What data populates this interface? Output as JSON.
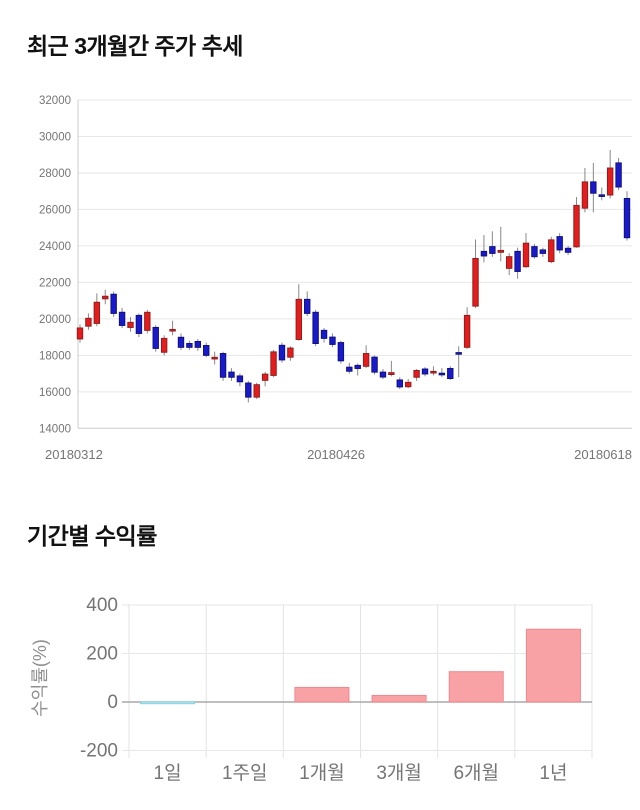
{
  "page": {
    "background": "#ffffff"
  },
  "chart_data": [
    {
      "type": "candlestick",
      "title": "최근 3개월간 주가 추세",
      "xlabel": "",
      "ylabel": "",
      "ylim": [
        14000,
        32000
      ],
      "y_ticks": [
        32000,
        30000,
        28000,
        26000,
        24000,
        22000,
        20000,
        18000,
        16000,
        14000
      ],
      "x_tick_labels": [
        "20180312",
        "20180426",
        "20180618"
      ],
      "grid": "horizontal-only",
      "colors": {
        "up_fill": "#e61c1c",
        "up_border": "#8f1f1f",
        "down_fill": "#1a1acd",
        "down_border": "#10107e",
        "wick": "#888888",
        "grid_line": "#e7e7e7",
        "axis_line": "#cccccc",
        "tick_text": "#757575"
      },
      "ohlc_note": "values in KRW, [open, high, low, close]; red = close above open, blue = close below open",
      "ohlc": [
        [
          18900,
          19700,
          18700,
          19500
        ],
        [
          19600,
          20300,
          19400,
          20030
        ],
        [
          19750,
          21400,
          19600,
          20910
        ],
        [
          21100,
          21600,
          20800,
          21240
        ],
        [
          21350,
          21500,
          20100,
          20300
        ],
        [
          20360,
          20600,
          19500,
          19640
        ],
        [
          19530,
          20100,
          19300,
          19810
        ],
        [
          20190,
          20300,
          19000,
          19200
        ],
        [
          19370,
          20500,
          19200,
          20360
        ],
        [
          19530,
          19650,
          18200,
          18380
        ],
        [
          18170,
          19100,
          18000,
          18930
        ],
        [
          19350,
          19900,
          19100,
          19420
        ],
        [
          18990,
          19200,
          18300,
          18440
        ],
        [
          18650,
          18800,
          18300,
          18440
        ],
        [
          18760,
          18900,
          18250,
          18440
        ],
        [
          18540,
          18700,
          17900,
          18000
        ],
        [
          17850,
          18200,
          17500,
          17890
        ],
        [
          18100,
          18200,
          16600,
          16800
        ],
        [
          17080,
          17300,
          16600,
          16800
        ],
        [
          16870,
          17000,
          16300,
          16550
        ],
        [
          16480,
          16600,
          15420,
          15710
        ],
        [
          15710,
          16500,
          15600,
          16390
        ],
        [
          16630,
          17100,
          16300,
          16970
        ],
        [
          16900,
          18300,
          16800,
          18190
        ],
        [
          18550,
          18700,
          17600,
          17750
        ],
        [
          17900,
          18500,
          17700,
          18400
        ],
        [
          18870,
          21900,
          18800,
          21070
        ],
        [
          21070,
          21500,
          20150,
          20300
        ],
        [
          20360,
          20500,
          18500,
          18650
        ],
        [
          19370,
          19500,
          18700,
          18930
        ],
        [
          19000,
          19200,
          18450,
          18600
        ],
        [
          18700,
          18800,
          17550,
          17700
        ],
        [
          17350,
          17600,
          17000,
          17130
        ],
        [
          17450,
          17550,
          16900,
          17280
        ],
        [
          17400,
          18550,
          17300,
          18100
        ],
        [
          17900,
          18000,
          16950,
          17080
        ],
        [
          17080,
          17250,
          16700,
          16810
        ],
        [
          16950,
          17700,
          16850,
          17050
        ],
        [
          16650,
          16800,
          16150,
          16270
        ],
        [
          16280,
          16700,
          16200,
          16520
        ],
        [
          16800,
          17250,
          16600,
          17170
        ],
        [
          17250,
          17350,
          16850,
          16980
        ],
        [
          17050,
          17400,
          16900,
          17120
        ],
        [
          17020,
          17300,
          16800,
          16990
        ],
        [
          17280,
          17400,
          16650,
          16730
        ],
        [
          18150,
          18500,
          16800,
          18100
        ],
        [
          18440,
          20640,
          18350,
          20190
        ],
        [
          20700,
          24350,
          20600,
          23310
        ],
        [
          23700,
          24600,
          23100,
          23450
        ],
        [
          23960,
          24800,
          23400,
          23590
        ],
        [
          23650,
          25050,
          23150,
          23750
        ],
        [
          22770,
          23600,
          22400,
          23410
        ],
        [
          23700,
          23900,
          22200,
          22600
        ],
        [
          22860,
          24700,
          22800,
          24150
        ],
        [
          23960,
          24100,
          23300,
          23410
        ],
        [
          23780,
          23900,
          23400,
          23590
        ],
        [
          23140,
          24500,
          23050,
          24330
        ],
        [
          24510,
          24700,
          23600,
          23780
        ],
        [
          23870,
          24000,
          23500,
          23650
        ],
        [
          23950,
          26680,
          23900,
          26220
        ],
        [
          26070,
          28270,
          25840,
          27510
        ],
        [
          27510,
          28550,
          25840,
          26890
        ],
        [
          26800,
          27200,
          26500,
          26740
        ],
        [
          26790,
          29260,
          26600,
          28270
        ],
        [
          28550,
          28820,
          27060,
          27230
        ],
        [
          26600,
          27000,
          24290,
          24450
        ]
      ]
    },
    {
      "type": "bar",
      "title": "기간별 수익률",
      "xlabel": "",
      "ylabel": "수익률(%)",
      "ylim": [
        -280,
        420
      ],
      "y_ticks": [
        400,
        200,
        0,
        -200
      ],
      "categories": [
        "1일",
        "1주일",
        "1개월",
        "3개월",
        "6개월",
        "1년"
      ],
      "values": [
        -7,
        0,
        60,
        27,
        125,
        300
      ],
      "grid": "both",
      "legend": "none",
      "colors": {
        "positive_fill": "#f9a2a6",
        "positive_border": "#f0888d",
        "negative_fill": "#cfeef5",
        "negative_border": "#7fd0de",
        "grid_line": "#e7e7e7",
        "zero_line": "#a8a8a8",
        "tick_text": "#757575",
        "axis_label_text": "#8f8f8f"
      }
    }
  ]
}
